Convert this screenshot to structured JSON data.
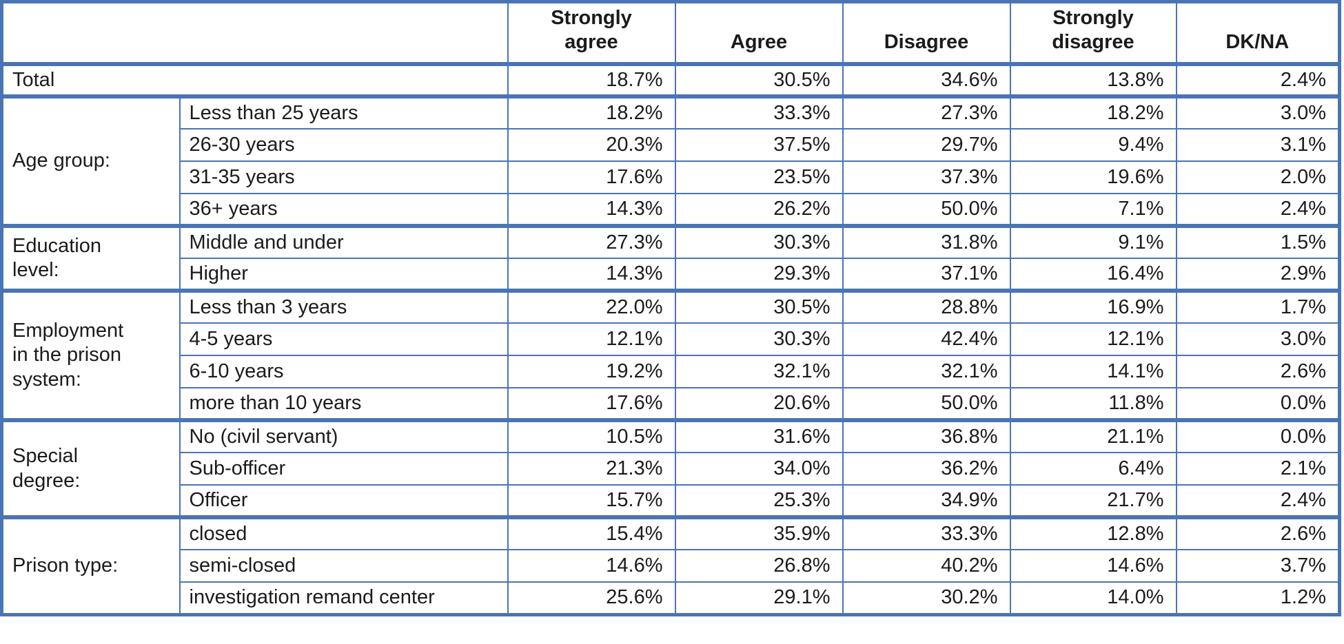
{
  "chart_data": {
    "type": "table",
    "title": "",
    "columns": [
      "Strongly\nagree",
      "Agree",
      "Disagree",
      "Strongly\ndisagree",
      "DK/NA"
    ],
    "total_row": {
      "label": "Total",
      "values": [
        "18.7%",
        "30.5%",
        "34.6%",
        "13.8%",
        "2.4%"
      ]
    },
    "groups": [
      {
        "label": "Age group:",
        "rows": [
          {
            "category": "Less than 25 years",
            "values": [
              "18.2%",
              "33.3%",
              "27.3%",
              "18.2%",
              "3.0%"
            ]
          },
          {
            "category": "26-30 years",
            "values": [
              "20.3%",
              "37.5%",
              "29.7%",
              "9.4%",
              "3.1%"
            ]
          },
          {
            "category": "31-35 years",
            "values": [
              "17.6%",
              "23.5%",
              "37.3%",
              "19.6%",
              "2.0%"
            ]
          },
          {
            "category": "36+ years",
            "values": [
              "14.3%",
              "26.2%",
              "50.0%",
              "7.1%",
              "2.4%"
            ]
          }
        ]
      },
      {
        "label": "Education\nlevel:",
        "rows": [
          {
            "category": "Middle and under",
            "values": [
              "27.3%",
              "30.3%",
              "31.8%",
              "9.1%",
              "1.5%"
            ]
          },
          {
            "category": "Higher",
            "values": [
              "14.3%",
              "29.3%",
              "37.1%",
              "16.4%",
              "2.9%"
            ]
          }
        ]
      },
      {
        "label": "Employment\nin the prison\nsystem:",
        "rows": [
          {
            "category": "Less than 3 years",
            "values": [
              "22.0%",
              "30.5%",
              "28.8%",
              "16.9%",
              "1.7%"
            ]
          },
          {
            "category": "4-5 years",
            "values": [
              "12.1%",
              "30.3%",
              "42.4%",
              "12.1%",
              "3.0%"
            ]
          },
          {
            "category": "6-10 years",
            "values": [
              "19.2%",
              "32.1%",
              "32.1%",
              "14.1%",
              "2.6%"
            ]
          },
          {
            "category": "more than 10 years",
            "values": [
              "17.6%",
              "20.6%",
              "50.0%",
              "11.8%",
              "0.0%"
            ]
          }
        ]
      },
      {
        "label": "Special\ndegree:",
        "rows": [
          {
            "category": "No (civil servant)",
            "values": [
              "10.5%",
              "31.6%",
              "36.8%",
              "21.1%",
              "0.0%"
            ]
          },
          {
            "category": "Sub-officer",
            "values": [
              "21.3%",
              "34.0%",
              "36.2%",
              "6.4%",
              "2.1%"
            ]
          },
          {
            "category": "Officer",
            "values": [
              "15.7%",
              "25.3%",
              "34.9%",
              "21.7%",
              "2.4%"
            ]
          }
        ]
      },
      {
        "label": "Prison type:",
        "rows": [
          {
            "category": "closed",
            "values": [
              "15.4%",
              "35.9%",
              "33.3%",
              "12.8%",
              "2.6%"
            ]
          },
          {
            "category": "semi-closed",
            "values": [
              "14.6%",
              "26.8%",
              "40.2%",
              "14.6%",
              "3.7%"
            ]
          },
          {
            "category": "investigation remand center",
            "values": [
              "25.6%",
              "29.1%",
              "30.2%",
              "14.0%",
              "1.2%"
            ]
          }
        ]
      }
    ],
    "layout": {
      "grid": true,
      "header_bold": true,
      "value_align": "right"
    },
    "colors": {
      "border_blue": "#4a74b4",
      "text": "#1b1b1b",
      "background": "#ffffff"
    }
  }
}
